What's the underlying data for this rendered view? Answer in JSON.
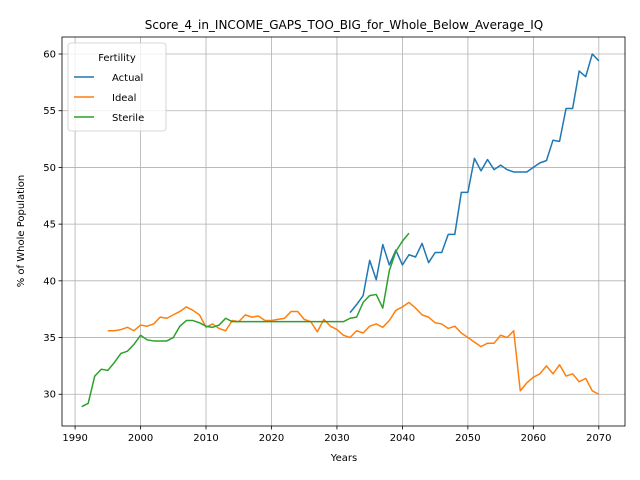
{
  "chart_data": {
    "type": "line",
    "title": "Score_4_in_INCOME_GAPS_TOO_BIG_for_Whole_Below_Average_IQ",
    "xlabel": "Years",
    "ylabel": "% of Whole Population",
    "xlim": [
      1988,
      2074
    ],
    "ylim": [
      27.2,
      61.5
    ],
    "xticks": [
      1990,
      2000,
      2010,
      2020,
      2030,
      2040,
      2050,
      2060,
      2070
    ],
    "yticks": [
      30,
      35,
      40,
      45,
      50,
      55,
      60
    ],
    "grid": true,
    "legend": {
      "title": "Fertility",
      "placement": "top-left"
    },
    "series": [
      {
        "name": "Actual",
        "color": "#1f77b4",
        "x": [
          2032,
          2033,
          2034,
          2035,
          2036,
          2037,
          2038,
          2039,
          2040,
          2041,
          2042,
          2043,
          2044,
          2045,
          2046,
          2047,
          2048,
          2049,
          2050,
          2051,
          2052,
          2053,
          2054,
          2055,
          2056,
          2057,
          2058,
          2059,
          2060,
          2061,
          2062,
          2063,
          2064,
          2065,
          2066,
          2067,
          2068,
          2069,
          2070
        ],
        "y": [
          37.2,
          37.9,
          38.7,
          41.8,
          40.1,
          43.2,
          41.4,
          42.7,
          41.4,
          42.3,
          42.1,
          43.3,
          41.6,
          42.5,
          42.5,
          44.1,
          44.1,
          47.8,
          47.8,
          50.8,
          49.7,
          50.7,
          49.8,
          50.2,
          49.8,
          49.6,
          49.6,
          49.6,
          50.0,
          50.4,
          50.6,
          52.4,
          52.3,
          55.2,
          55.2,
          58.5,
          58.0,
          60.0,
          59.4
        ]
      },
      {
        "name": "Ideal",
        "color": "#ff7f0e",
        "x": [
          1995,
          1996,
          1997,
          1998,
          1999,
          2000,
          2001,
          2002,
          2003,
          2004,
          2005,
          2006,
          2007,
          2008,
          2009,
          2010,
          2011,
          2012,
          2013,
          2014,
          2015,
          2016,
          2017,
          2018,
          2019,
          2020,
          2021,
          2022,
          2023,
          2024,
          2025,
          2026,
          2027,
          2028,
          2029,
          2030,
          2031,
          2032,
          2033,
          2034,
          2035,
          2036,
          2037,
          2038,
          2039,
          2040,
          2041,
          2042,
          2043,
          2044,
          2045,
          2046,
          2047,
          2048,
          2049,
          2050,
          2051,
          2052,
          2053,
          2054,
          2055,
          2056,
          2057,
          2058,
          2059,
          2060,
          2061,
          2062,
          2063,
          2064,
          2065,
          2066,
          2067,
          2068,
          2069,
          2070
        ],
        "y": [
          35.6,
          35.6,
          35.7,
          35.9,
          35.6,
          36.1,
          36.0,
          36.2,
          36.8,
          36.7,
          37.0,
          37.3,
          37.7,
          37.4,
          37.0,
          35.9,
          36.2,
          35.8,
          35.6,
          36.5,
          36.4,
          37.0,
          36.8,
          36.9,
          36.5,
          36.5,
          36.6,
          36.7,
          37.3,
          37.3,
          36.6,
          36.4,
          35.5,
          36.6,
          36.0,
          35.7,
          35.2,
          35.0,
          35.6,
          35.4,
          36.0,
          36.2,
          35.9,
          36.5,
          37.4,
          37.7,
          38.1,
          37.6,
          37.0,
          36.8,
          36.3,
          36.2,
          35.8,
          36.0,
          35.4,
          35.0,
          34.6,
          34.2,
          34.5,
          34.5,
          35.2,
          35.0,
          35.6,
          30.3,
          31.0,
          31.5,
          31.8,
          32.5,
          31.8,
          32.6,
          31.6,
          31.8,
          31.1,
          31.4,
          30.3,
          30.0
        ]
      },
      {
        "name": "Sterile",
        "color": "#2ca02c",
        "x": [
          1991,
          1992,
          1993,
          1994,
          1995,
          1996,
          1997,
          1998,
          1999,
          2000,
          2001,
          2002,
          2003,
          2004,
          2005,
          2006,
          2007,
          2008,
          2009,
          2010,
          2011,
          2012,
          2013,
          2014,
          2015,
          2016,
          2017,
          2018,
          2019,
          2020,
          2021,
          2022,
          2023,
          2024,
          2025,
          2026,
          2027,
          2028,
          2029,
          2030,
          2031,
          2032,
          2033,
          2034,
          2035,
          2036,
          2037,
          2038,
          2039,
          2040,
          2041
        ],
        "y": [
          28.9,
          29.2,
          31.6,
          32.2,
          32.1,
          32.8,
          33.6,
          33.8,
          34.4,
          35.2,
          34.8,
          34.7,
          34.7,
          34.7,
          35.0,
          36.0,
          36.5,
          36.5,
          36.3,
          36.0,
          35.9,
          36.1,
          36.7,
          36.4,
          36.4,
          36.4,
          36.4,
          36.4,
          36.4,
          36.4,
          36.4,
          36.4,
          36.4,
          36.4,
          36.4,
          36.4,
          36.4,
          36.4,
          36.4,
          36.4,
          36.4,
          36.7,
          36.8,
          38.1,
          38.7,
          38.8,
          37.6,
          40.9,
          42.6,
          43.5,
          44.2
        ]
      }
    ]
  }
}
